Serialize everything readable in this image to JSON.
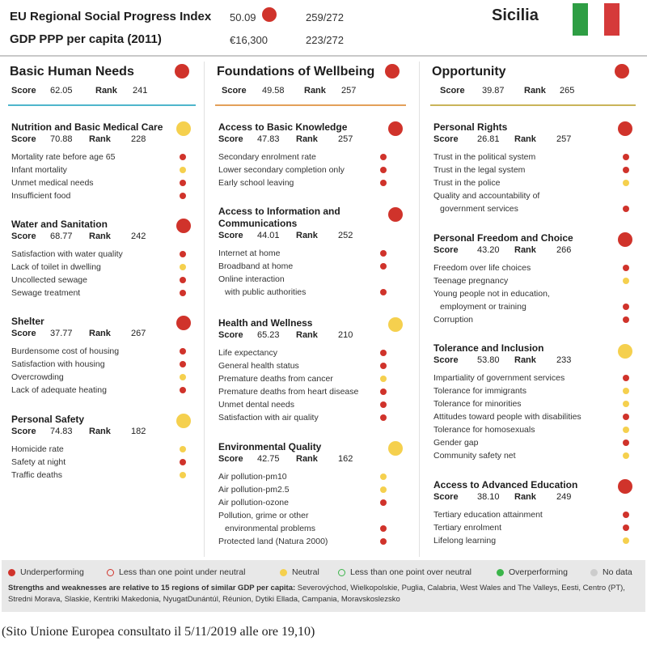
{
  "header": {
    "spi_label": "EU Regional Social Progress Index",
    "spi_value": "50.09",
    "spi_rank": "259/272",
    "gdp_label": "GDP PPP per capita (2011)",
    "gdp_value": "€16,300",
    "gdp_rank": "223/272",
    "region": "Sicilia",
    "flag_colors": [
      "#2e9e44",
      "#ffffff",
      "#d53a3a"
    ]
  },
  "labels": {
    "score": "Score",
    "rank": "Rank"
  },
  "colors": {
    "underperforming": "#d0332b",
    "neutral": "#f5d04e",
    "overperforming": "#3bb54a",
    "no_data": "#cccccc"
  },
  "columns": [
    {
      "title": "Basic Human Needs",
      "score": "62.05",
      "rank": "241",
      "status": "red",
      "rule_color": "#4fb6cc",
      "components": [
        {
          "title": "Nutrition and Basic Medical Care",
          "score": "70.88",
          "rank": "228",
          "status": "yellow",
          "indicators": [
            {
              "label": "Mortality rate before age 65",
              "status": "red"
            },
            {
              "label": "Infant mortality",
              "status": "yellow"
            },
            {
              "label": "Unmet medical needs",
              "status": "red"
            },
            {
              "label": "Insufficient food",
              "status": "red"
            }
          ]
        },
        {
          "title": "Water and Sanitation",
          "score": "68.77",
          "rank": "242",
          "status": "red",
          "indicators": [
            {
              "label": "Satisfaction with water quality",
              "status": "red"
            },
            {
              "label": "Lack of toilet in dwelling",
              "status": "yellow"
            },
            {
              "label": "Uncollected sewage",
              "status": "red"
            },
            {
              "label": "Sewage treatment",
              "status": "red"
            }
          ]
        },
        {
          "title": "Shelter",
          "score": "37.77",
          "rank": "267",
          "status": "red",
          "indicators": [
            {
              "label": "Burdensome cost of housing",
              "status": "red"
            },
            {
              "label": "Satisfaction with housing",
              "status": "red"
            },
            {
              "label": "Overcrowding",
              "status": "yellow"
            },
            {
              "label": "Lack of adequate heating",
              "status": "red"
            }
          ]
        },
        {
          "title": "Personal Safety",
          "score": "74.83",
          "rank": "182",
          "status": "yellow",
          "indicators": [
            {
              "label": "Homicide rate",
              "status": "yellow"
            },
            {
              "label": "Safety at night",
              "status": "red"
            },
            {
              "label": "Traffic deaths",
              "status": "yellow"
            }
          ]
        }
      ]
    },
    {
      "title": "Foundations of Wellbeing",
      "score": "49.58",
      "rank": "257",
      "status": "red",
      "rule_color": "#e3a05a",
      "components": [
        {
          "title": "Access to Basic Knowledge",
          "score": "47.83",
          "rank": "257",
          "status": "red",
          "indicators": [
            {
              "label": "Secondary enrolment rate",
              "status": "red"
            },
            {
              "label": "Lower secondary completion only",
              "status": "red"
            },
            {
              "label": "Early school leaving",
              "status": "red"
            }
          ]
        },
        {
          "title": "Access to Information and Communications",
          "title_line1": "Access to Information and",
          "title_line2": "Communications",
          "score": "44.01",
          "rank": "252",
          "status": "red",
          "indicators": [
            {
              "label": "Internet at home",
              "status": "red"
            },
            {
              "label": "Broadband at home",
              "status": "red"
            },
            {
              "label": "Online interaction",
              "label2": "with public authorities",
              "status": "red"
            }
          ]
        },
        {
          "title": "Health and Wellness",
          "score": "65.23",
          "rank": "210",
          "status": "yellow",
          "indicators": [
            {
              "label": "Life expectancy",
              "status": "red"
            },
            {
              "label": "General health status",
              "status": "red"
            },
            {
              "label": "Premature deaths from cancer",
              "status": "yellow"
            },
            {
              "label": "Premature deaths from heart disease",
              "status": "red"
            },
            {
              "label": "Unmet dental needs",
              "status": "red"
            },
            {
              "label": "Satisfaction with air quality",
              "status": "red"
            }
          ]
        },
        {
          "title": "Environmental Quality",
          "score": "42.75",
          "rank": "162",
          "status": "yellow",
          "indicators": [
            {
              "label": "Air pollution-pm10",
              "status": "yellow"
            },
            {
              "label": "Air pollution-pm2.5",
              "status": "yellow"
            },
            {
              "label": "Air pollution-ozone",
              "status": "red"
            },
            {
              "label": "Pollution, grime or other",
              "label2": "environmental problems",
              "status": "red"
            },
            {
              "label": "Protected land (Natura 2000)",
              "status": "red"
            }
          ]
        }
      ]
    },
    {
      "title": "Opportunity",
      "score": "39.87",
      "rank": "265",
      "status": "red",
      "rule_color": "#c9b45a",
      "components": [
        {
          "title": "Personal Rights",
          "score": "26.81",
          "rank": "257",
          "status": "red",
          "indicators": [
            {
              "label": "Trust in the political system",
              "status": "red"
            },
            {
              "label": "Trust in the legal system",
              "status": "red"
            },
            {
              "label": "Trust in the police",
              "status": "yellow"
            },
            {
              "label": "Quality and accountability of",
              "label2": "government services",
              "status": "red"
            }
          ]
        },
        {
          "title": "Personal Freedom and Choice",
          "score": "43.20",
          "rank": "266",
          "status": "red",
          "indicators": [
            {
              "label": "Freedom over life choices",
              "status": "red"
            },
            {
              "label": "Teenage pregnancy",
              "status": "yellow"
            },
            {
              "label": "Young people not in education,",
              "label2": "employment or training",
              "status": "red"
            },
            {
              "label": "Corruption",
              "status": "red"
            }
          ]
        },
        {
          "title": "Tolerance and Inclusion",
          "score": "53.80",
          "rank": "233",
          "status": "yellow",
          "indicators": [
            {
              "label": "Impartiality of government services",
              "status": "red"
            },
            {
              "label": "Tolerance for immigrants",
              "status": "yellow"
            },
            {
              "label": "Tolerance for minorities",
              "status": "yellow"
            },
            {
              "label": "Attitudes toward people with disabilities",
              "status": "red"
            },
            {
              "label": "Tolerance for homosexuals",
              "status": "yellow"
            },
            {
              "label": "Gender gap",
              "status": "red"
            },
            {
              "label": "Community safety net",
              "status": "yellow"
            }
          ]
        },
        {
          "title": "Access to Advanced Education",
          "score": "38.10",
          "rank": "249",
          "status": "red",
          "indicators": [
            {
              "label": "Tertiary education attainment",
              "status": "red"
            },
            {
              "label": "Tertiary enrolment",
              "status": "red"
            },
            {
              "label": "Lifelong learning",
              "status": "yellow"
            }
          ]
        }
      ]
    }
  ],
  "legend": {
    "underperforming": "Underperforming",
    "less_under": "Less than one point under neutral",
    "neutral": "Neutral",
    "less_over": "Less than one point over neutral",
    "overperforming": "Overperforming",
    "no_data": "No data",
    "note_bold": "Strengths and weaknesses are relative to 15 regions of similar GDP per capita:",
    "note_regions": " Severovýchod, Wielkopolskie, Puglia, Calabria, West Wales and The Valleys, Eesti, Centro (PT), Stredni Morava, Slaskie, Kentriki Makedonia, NyugatDunántúl, Réunion, Dytiki Ellada, Campania, Moravskoslezsko"
  },
  "footnote": "(Sito Unione Europea consultato il 5/11/2019 alle ore 19,10)"
}
